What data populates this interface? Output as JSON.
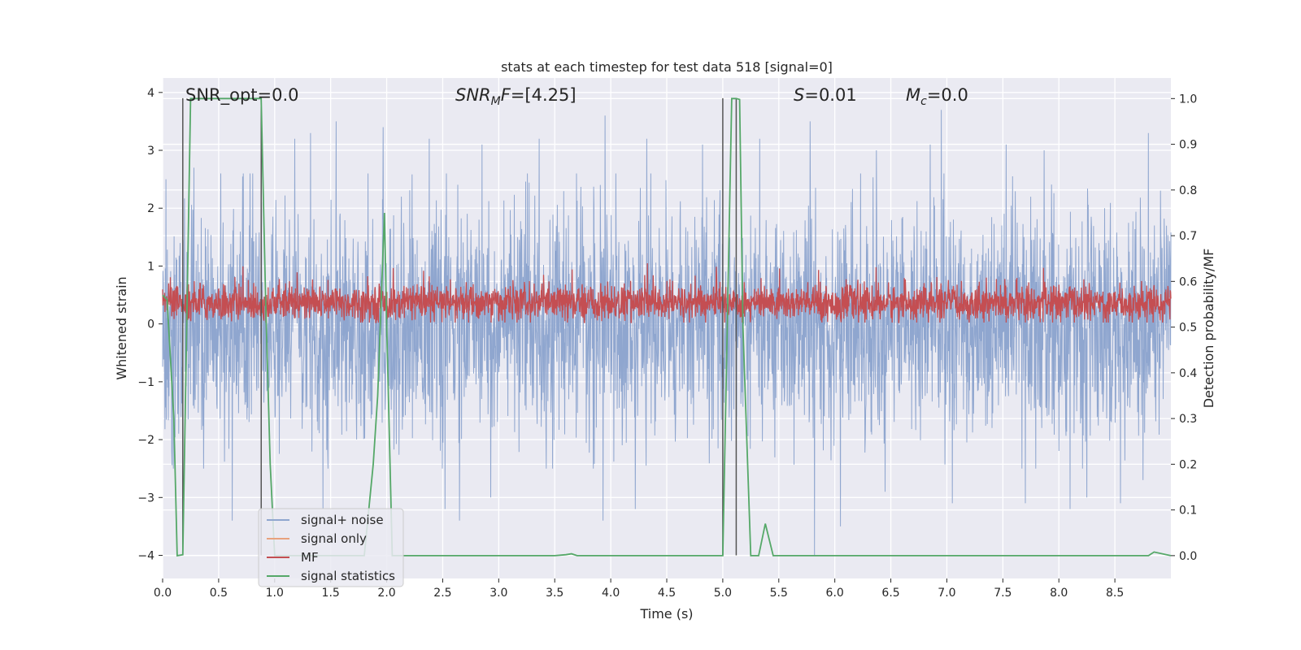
{
  "chart_data": {
    "type": "line",
    "title": "stats at each timestep for test data 518 [signal=0]",
    "xlabel": "Time (s)",
    "ylabel_left": "Whitened strain",
    "ylabel_right": "Detection probability/MF",
    "xlim": [
      0,
      9
    ],
    "ylim_left": [
      -4.4,
      4.25
    ],
    "ylim_right": [
      -0.05,
      1.045
    ],
    "x_ticks": [
      0,
      0.5,
      1,
      1.5,
      2,
      2.5,
      3,
      3.5,
      4,
      4.5,
      5,
      5.5,
      6,
      6.5,
      7,
      7.5,
      8,
      8.5
    ],
    "x_tick_labels": [
      "0.0",
      "0.5",
      "1.0",
      "1.5",
      "2.0",
      "2.5",
      "3.0",
      "3.5",
      "4.0",
      "4.5",
      "5.0",
      "5.5",
      "6.0",
      "6.5",
      "7.0",
      "7.5",
      "8.0",
      "8.5"
    ],
    "y_left_ticks": [
      -4,
      -3,
      -2,
      -1,
      0,
      1,
      2,
      3,
      4
    ],
    "y_left_tick_labels": [
      "−4",
      "−3",
      "−2",
      "−1",
      "0",
      "1",
      "2",
      "3",
      "4"
    ],
    "y_right_ticks": [
      0,
      0.1,
      0.2,
      0.3,
      0.4,
      0.5,
      0.6,
      0.7,
      0.8,
      0.9,
      1.0
    ],
    "y_right_tick_labels": [
      "0.0",
      "0.1",
      "0.2",
      "0.3",
      "0.4",
      "0.5",
      "0.6",
      "0.7",
      "0.8",
      "0.9",
      "1.0"
    ],
    "grid": true,
    "legend_position": "lower-left",
    "annotations": {
      "snr_opt": "SNR_opt=0.0",
      "snr_mf": "=[4.25]",
      "s_val": "=0.01",
      "mc_val": "=0.0"
    },
    "series": [
      {
        "name": "signal+ noise",
        "color": "#8fa6cf",
        "axis": "left",
        "description_values": {
          "typical_range": [
            -2.5,
            2.6
          ],
          "extremes": [
            -4.0,
            3.9
          ]
        },
        "peaks": [
          {
            "x": 0.03,
            "y": 2.5
          },
          {
            "x": 0.08,
            "y": -2.2
          },
          {
            "x": 0.28,
            "y": 2.7
          },
          {
            "x": 0.62,
            "y": -3.4
          },
          {
            "x": 0.78,
            "y": 2.6
          },
          {
            "x": 1.18,
            "y": 3.2
          },
          {
            "x": 1.32,
            "y": 3.3
          },
          {
            "x": 1.43,
            "y": -3.2
          },
          {
            "x": 1.55,
            "y": 3.5
          },
          {
            "x": 1.97,
            "y": 3.4
          },
          {
            "x": 2.38,
            "y": 3.2
          },
          {
            "x": 2.52,
            "y": -3.2
          },
          {
            "x": 2.65,
            "y": -3.4
          },
          {
            "x": 2.85,
            "y": 3.1
          },
          {
            "x": 2.93,
            "y": -3.0
          },
          {
            "x": 3.36,
            "y": 3.2
          },
          {
            "x": 3.95,
            "y": 3.6
          },
          {
            "x": 3.93,
            "y": -3.4
          },
          {
            "x": 4.22,
            "y": -3.2
          },
          {
            "x": 4.32,
            "y": 3.2
          },
          {
            "x": 4.82,
            "y": 3.1
          },
          {
            "x": 5.33,
            "y": 3.2
          },
          {
            "x": 5.82,
            "y": -4.0
          },
          {
            "x": 5.78,
            "y": 3.5
          },
          {
            "x": 6.05,
            "y": -3.5
          },
          {
            "x": 6.37,
            "y": 3.0
          },
          {
            "x": 6.45,
            "y": -2.9
          },
          {
            "x": 6.85,
            "y": 3.1
          },
          {
            "x": 6.95,
            "y": 3.7
          },
          {
            "x": 7.05,
            "y": -3.1
          },
          {
            "x": 7.53,
            "y": 3.1
          },
          {
            "x": 7.7,
            "y": -3.1
          },
          {
            "x": 7.87,
            "y": 3.0
          },
          {
            "x": 8.1,
            "y": -3.2
          },
          {
            "x": 8.25,
            "y": -3.0
          },
          {
            "x": 8.55,
            "y": -3.1
          },
          {
            "x": 8.75,
            "y": -2.7
          },
          {
            "x": 8.8,
            "y": 3.3
          }
        ]
      },
      {
        "name": "signal only",
        "color": "#e8a27d",
        "axis": "left",
        "values": [
          0
        ]
      },
      {
        "name": "MF",
        "color": "#c44e52",
        "axis": "right",
        "description_values": {
          "typical_range": [
            0.51,
            0.6
          ],
          "extremes": [
            0.51,
            0.64
          ]
        }
      },
      {
        "name": "signal statistics",
        "color": "#55a868",
        "axis": "right",
        "x": [
          0.0,
          0.04,
          0.1,
          0.13,
          0.18,
          0.25,
          0.88,
          0.92,
          0.96,
          1.0,
          1.8,
          1.88,
          1.92,
          1.98,
          2.0,
          2.05,
          3.5,
          3.6,
          3.65,
          3.7,
          5.0,
          5.04,
          5.08,
          5.12,
          5.15,
          5.18,
          5.25,
          5.32,
          5.38,
          5.45,
          8.75,
          8.8,
          8.85,
          9.0
        ],
        "y": [
          0.57,
          0.56,
          0.3,
          0.0,
          0.002,
          1.0,
          1.0,
          0.55,
          0.2,
          0.0,
          0.0,
          0.2,
          0.35,
          0.75,
          0.5,
          0.0,
          0.0,
          0.002,
          0.004,
          0.0,
          0.0,
          0.5,
          1.0,
          1.0,
          0.998,
          0.5,
          0.0,
          0.0,
          0.07,
          0.0,
          0.0,
          0.0,
          0.008,
          0.0
        ]
      }
    ],
    "vertical_lines": [
      {
        "x": 0.18,
        "y_range_left": [
          -4.0,
          3.9
        ]
      },
      {
        "x": 0.88,
        "y_range_left": [
          -4.0,
          3.9
        ]
      },
      {
        "x": 5.0,
        "y_range_left": [
          -4.0,
          3.9
        ]
      },
      {
        "x": 5.12,
        "y_range_left": [
          -4.0,
          3.9
        ]
      }
    ]
  }
}
